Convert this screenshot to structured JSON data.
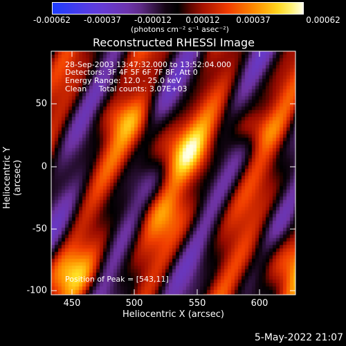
{
  "colorbar": {
    "tick_labels": [
      "-0.00062",
      "-0.00037",
      "-0.00012",
      "0.00012",
      "0.00037",
      "0.00062"
    ],
    "units": "(photons cm⁻² s⁻¹ asec⁻²)"
  },
  "title": "Reconstructed RHESSI Image",
  "info": {
    "time_range": "28-Sep-2003 13:47:32.000 to 13:52:04.000",
    "detectors": "Detectors: 3F 4F 5F 6F 7F 8F, Att 0",
    "energy": "Energy Range: 12.0 - 25.0 keV",
    "clean": "Clean     Total counts: 3.07E+03"
  },
  "peak": "Position of Peak = [543,11]",
  "axes": {
    "xlabel": "Heliocentric X (arcsec)",
    "ylabel": "Heliocentric Y (arcsec)",
    "xticks": [
      "450",
      "500",
      "550",
      "600"
    ],
    "yticks": [
      "50",
      "0",
      "-50",
      "-100"
    ]
  },
  "timestamp": "5-May-2022 21:07",
  "colors": {
    "background": "#000000",
    "foreground": "#ffffff"
  }
}
